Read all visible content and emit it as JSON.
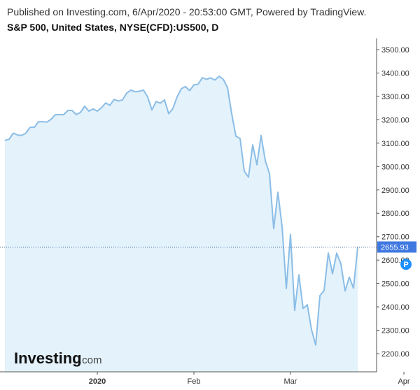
{
  "header": {
    "published": "Published on Investing.com, 6/Apr/2020 - 20:53:00 GMT, Powered by TradingView.",
    "instrument": "S&P 500, United States, NYSE(CFD):US500, D"
  },
  "watermark": {
    "brand": "Investing",
    "suffix": ".com"
  },
  "colors": {
    "line": "#8bbde6",
    "area": "#e3f2fb",
    "last_price_bg": "#3f78e0",
    "marker_bg": "#1e90ff",
    "axis": "#333333"
  },
  "chart_data": {
    "type": "area",
    "title": "S&P 500, United States, NYSE(CFD):US500, D",
    "ylim": [
      2150,
      3560
    ],
    "y_ticks": [
      "3500.00",
      "3400.00",
      "3300.00",
      "3200.00",
      "3100.00",
      "3000.00",
      "2900.00",
      "2800.00",
      "2700.00",
      "2600.00",
      "2500.00",
      "2400.00",
      "2300.00",
      "2200.00"
    ],
    "y_tick_values": [
      3500,
      3400,
      3300,
      3200,
      3100,
      3000,
      2900,
      2800,
      2700,
      2600,
      2500,
      2400,
      2300,
      2200
    ],
    "x_ticks": [
      {
        "label": "2020",
        "index": 22,
        "bold": true
      },
      {
        "label": "Feb",
        "index": 45,
        "bold": false
      },
      {
        "label": "Mar",
        "index": 68,
        "bold": false
      },
      {
        "label": "Apr",
        "index": 95,
        "bold": false
      }
    ],
    "last_price": 2655.93,
    "last_price_label": "2655.93",
    "marker_label": "P",
    "marker_index": 95,
    "marker_value": 2600,
    "values": [
      3112,
      3117,
      3143,
      3135,
      3133,
      3143,
      3168,
      3168,
      3192,
      3192,
      3190,
      3202,
      3222,
      3222,
      3222,
      3240,
      3240,
      3222,
      3232,
      3258,
      3237,
      3247,
      3237,
      3252,
      3272,
      3262,
      3287,
      3280,
      3285,
      3314,
      3327,
      3320,
      3322,
      3327,
      3297,
      3242,
      3278,
      3271,
      3285,
      3226,
      3248,
      3298,
      3333,
      3342,
      3325,
      3349,
      3352,
      3380,
      3373,
      3379,
      3370,
      3386,
      3373,
      3338,
      3226,
      3130,
      3120,
      2980,
      2955,
      3093,
      3008,
      3133,
      3025,
      2970,
      2735,
      2890,
      2743,
      2479,
      2710,
      2385,
      2537,
      2393,
      2409,
      2303,
      2237,
      2448,
      2470,
      2630,
      2542,
      2630,
      2584,
      2468,
      2527,
      2480,
      2655
    ]
  }
}
